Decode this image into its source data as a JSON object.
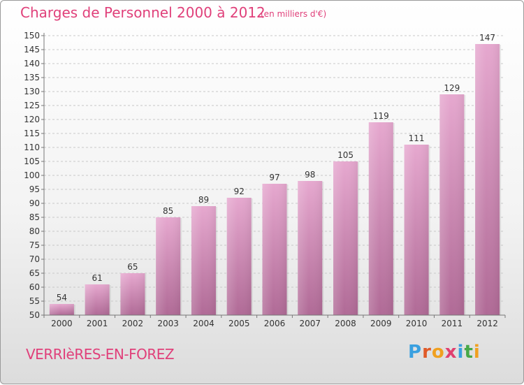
{
  "header": {
    "title": "Charges de Personnel 2000 à 2012",
    "subtitle": "(en milliers d'€)"
  },
  "footer": {
    "commune": "VERRIèRES-EN-FOREZ",
    "logo_letters": [
      "P",
      "r",
      "o",
      "x",
      "i",
      "t",
      "i"
    ],
    "logo_colors": [
      "#3aa0e0",
      "#e05a28",
      "#f0a020",
      "#e04070",
      "#3aa0e0",
      "#48a848",
      "#f0a020"
    ]
  },
  "colors": {
    "accent": "#e0407a",
    "bar_top": "#e6a8cf",
    "bar_bottom": "#b06a96",
    "grid": "#c8c8c8",
    "axis_text": "#333333"
  },
  "chart_data": {
    "type": "bar",
    "categories": [
      "2000",
      "2001",
      "2002",
      "2003",
      "2004",
      "2005",
      "2006",
      "2007",
      "2008",
      "2009",
      "2010",
      "2011",
      "2012"
    ],
    "values": [
      54,
      61,
      65,
      85,
      89,
      92,
      97,
      98,
      105,
      119,
      111,
      129,
      147
    ],
    "title": "Charges de Personnel 2000 à 2012",
    "subtitle": "(en milliers d'€)",
    "xlabel": "",
    "ylabel": "",
    "ylim": [
      50,
      150
    ],
    "ytick_step": 5,
    "grid": true,
    "legend": "none"
  }
}
